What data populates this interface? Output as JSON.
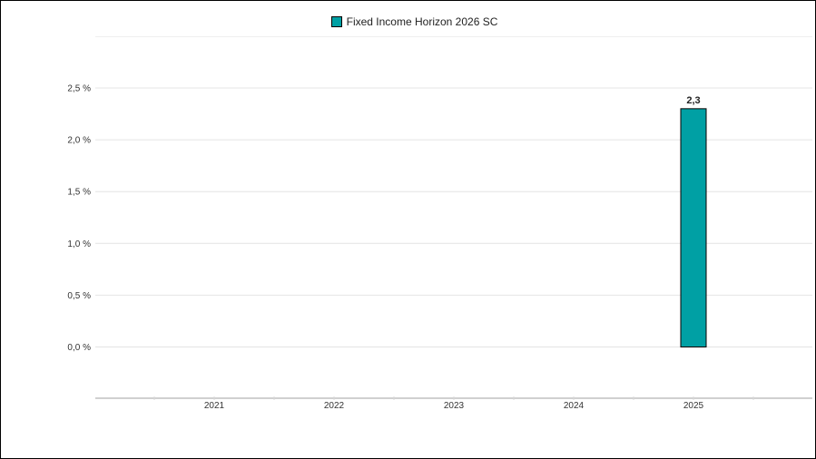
{
  "chart_data": {
    "type": "bar",
    "categories": [
      "2021",
      "2022",
      "2023",
      "2024",
      "2025"
    ],
    "series": [
      {
        "name": "Fixed Income Horizon 2026 SC",
        "values": [
          null,
          null,
          null,
          null,
          2.3
        ],
        "data_labels": [
          "",
          "",
          "",
          "",
          "2,3"
        ],
        "color": "#00A0A4"
      }
    ],
    "ylim": [
      -0.5,
      3.0
    ],
    "yticks": [
      0.0,
      0.5,
      1.0,
      1.5,
      2.0,
      2.5
    ],
    "ytick_labels": [
      "0,0 %",
      "0,5 %",
      "1,0 %",
      "1,5 %",
      "2,0 %",
      "2,5 %"
    ],
    "grid": true,
    "legend_position": "top-center",
    "title": "",
    "xlabel": "",
    "ylabel": ""
  }
}
